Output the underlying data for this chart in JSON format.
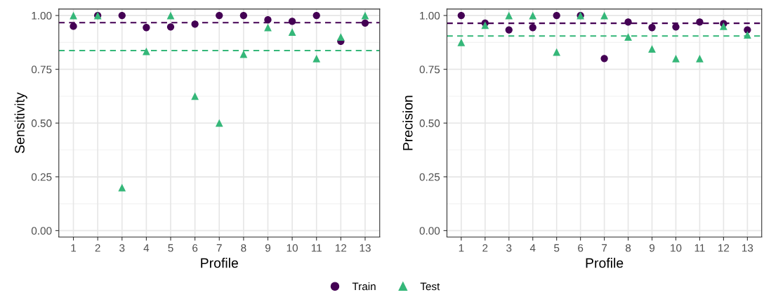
{
  "chart_data": [
    {
      "type": "scatter",
      "xlabel": "Profile",
      "ylabel": "Sensitivity",
      "categories": [
        "1",
        "2",
        "3",
        "4",
        "5",
        "6",
        "7",
        "8",
        "9",
        "10",
        "11",
        "12",
        "13"
      ],
      "ylim": [
        -0.03,
        1.03
      ],
      "yticks": [
        {
          "value": 0,
          "label": "0.00"
        },
        {
          "value": 0.25,
          "label": "0.25"
        },
        {
          "value": 0.5,
          "label": "0.50"
        },
        {
          "value": 0.75,
          "label": "0.75"
        },
        {
          "value": 1,
          "label": "1.00"
        }
      ],
      "grid": true,
      "legend": "bottom",
      "series": [
        {
          "name": "Train",
          "color": "#440154",
          "marker": "circle",
          "values": [
            0.95,
            1.0,
            1.0,
            0.944,
            0.947,
            0.96,
            1.0,
            1.0,
            0.98,
            0.973,
            1.0,
            0.88,
            0.965
          ]
        },
        {
          "name": "Test",
          "color": "#35b779",
          "marker": "triangle",
          "values": [
            1.0,
            1.0,
            0.2,
            0.833,
            1.0,
            0.625,
            0.5,
            0.82,
            0.944,
            0.923,
            0.8,
            0.9,
            1.0
          ]
        }
      ],
      "ref_lines": [
        {
          "axis": "y",
          "value": 0.967,
          "color": "#440154",
          "line_style": "dashed"
        },
        {
          "axis": "y",
          "value": 0.837,
          "color": "#35b779",
          "line_style": "dashed"
        }
      ]
    },
    {
      "type": "scatter",
      "xlabel": "Profile",
      "ylabel": "Precision",
      "categories": [
        "1",
        "2",
        "3",
        "4",
        "5",
        "6",
        "7",
        "8",
        "9",
        "10",
        "11",
        "12",
        "13"
      ],
      "ylim": [
        -0.03,
        1.03
      ],
      "yticks": [
        {
          "value": 0,
          "label": "0.00"
        },
        {
          "value": 0.25,
          "label": "0.25"
        },
        {
          "value": 0.5,
          "label": "0.50"
        },
        {
          "value": 0.75,
          "label": "0.75"
        },
        {
          "value": 1,
          "label": "1.00"
        }
      ],
      "grid": true,
      "legend": "bottom",
      "series": [
        {
          "name": "Train",
          "color": "#440154",
          "marker": "circle",
          "values": [
            1.0,
            0.965,
            0.933,
            0.944,
            1.0,
            1.0,
            0.8,
            0.97,
            0.944,
            0.947,
            0.97,
            0.962,
            0.933
          ]
        },
        {
          "name": "Test",
          "color": "#35b779",
          "marker": "triangle",
          "values": [
            0.875,
            0.955,
            1.0,
            1.0,
            0.83,
            1.0,
            1.0,
            0.9,
            0.845,
            0.8,
            0.8,
            0.95,
            0.91
          ]
        }
      ],
      "ref_lines": [
        {
          "axis": "y",
          "value": 0.964,
          "color": "#440154",
          "line_style": "dashed"
        },
        {
          "axis": "y",
          "value": 0.905,
          "color": "#35b779",
          "line_style": "dashed"
        }
      ]
    }
  ]
}
